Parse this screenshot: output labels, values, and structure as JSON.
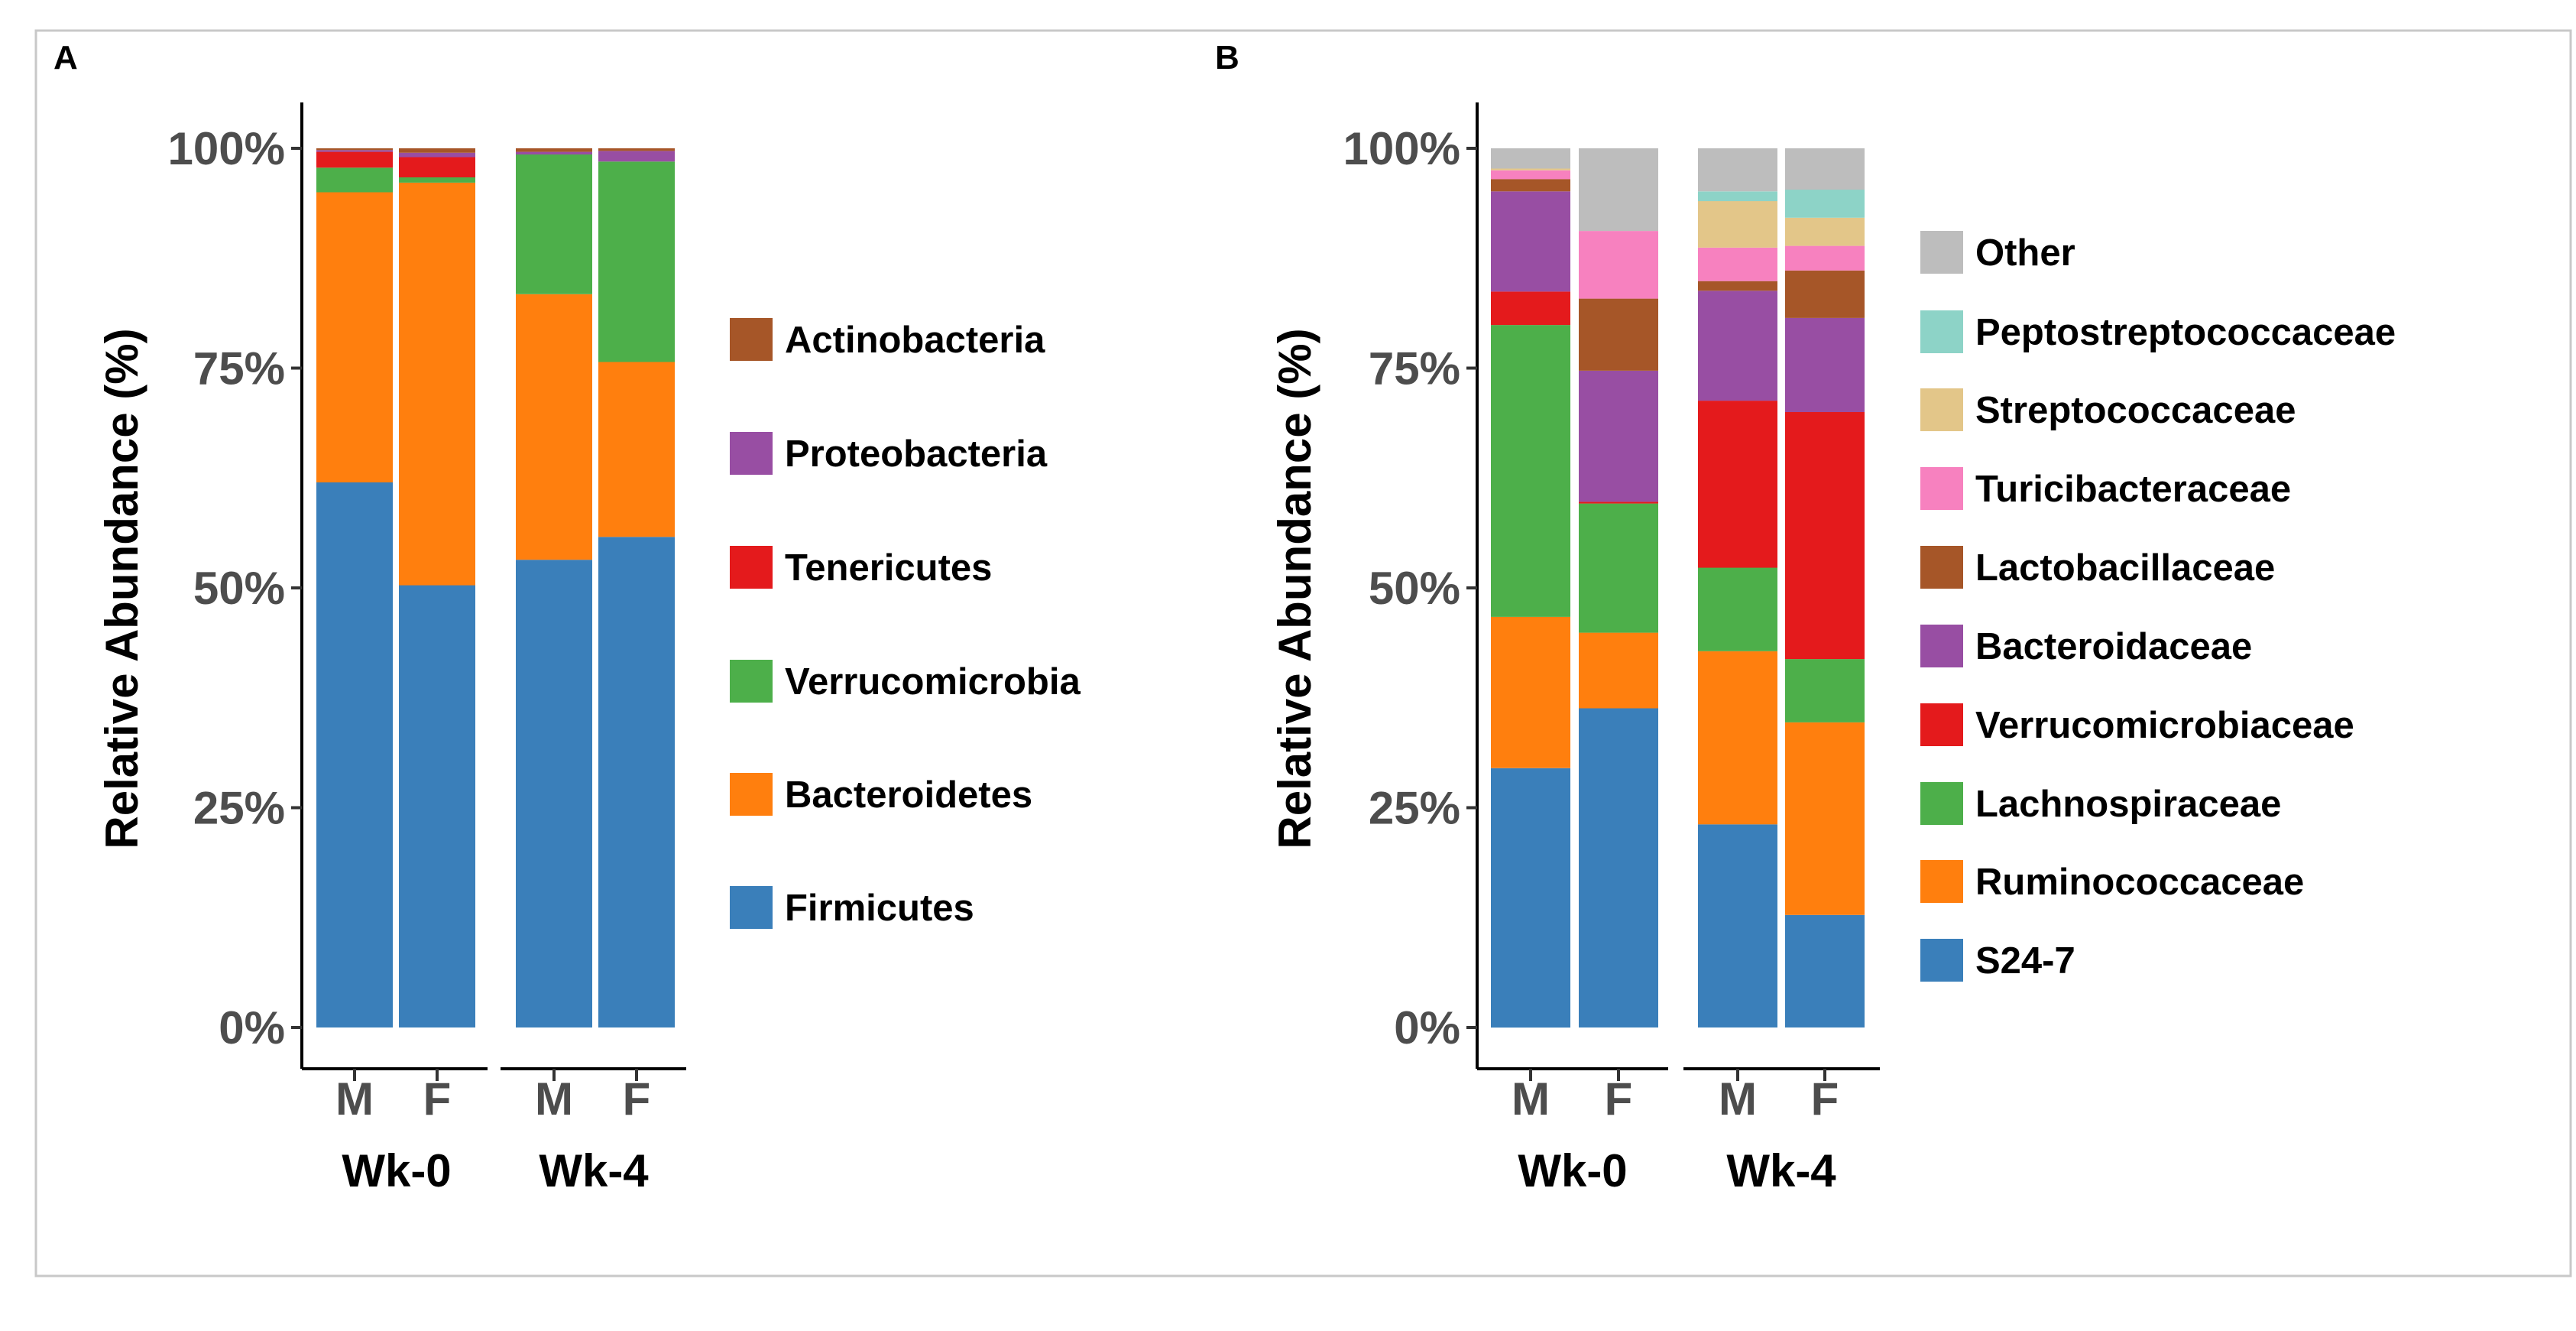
{
  "colors": {
    "blue": "#3a7fba",
    "orange": "#ff7f0e",
    "green": "#4daf4a",
    "red": "#e41a1c",
    "purple": "#984ea3",
    "brown": "#a65628",
    "pink": "#f781bf",
    "tan": "#e3c689",
    "teal": "#8dd3c7",
    "grey": "#bdbdbd"
  },
  "chart_data": [
    {
      "panel": "A",
      "type": "bar",
      "stacked": true,
      "ylabel": "Relative Abundance (%)",
      "yticks": [
        "0%",
        "25%",
        "50%",
        "75%",
        "100%"
      ],
      "ylim": [
        0,
        100
      ],
      "groups": [
        "Wk-0",
        "Wk-4"
      ],
      "categories": [
        "M",
        "F",
        "M",
        "F"
      ],
      "legend": [
        "Actinobacteria",
        "Proteobacteria",
        "Tenericutes",
        "Verrucomicrobia",
        "Bacteroidetes",
        "Firmicutes"
      ],
      "legend_colors": [
        "brown",
        "purple",
        "red",
        "green",
        "orange",
        "blue"
      ],
      "series": [
        {
          "name": "Firmicutes",
          "color": "blue",
          "values": [
            62.0,
            50.3,
            53.2,
            55.8
          ]
        },
        {
          "name": "Bacteroidetes",
          "color": "orange",
          "values": [
            33.0,
            45.8,
            30.2,
            19.9
          ]
        },
        {
          "name": "Verrucomicrobia",
          "color": "green",
          "values": [
            2.8,
            0.6,
            15.9,
            22.8
          ]
        },
        {
          "name": "Tenericutes",
          "color": "red",
          "values": [
            1.8,
            2.3,
            0.0,
            0.0
          ]
        },
        {
          "name": "Proteobacteria",
          "color": "purple",
          "values": [
            0.2,
            0.5,
            0.3,
            1.2
          ]
        },
        {
          "name": "Actinobacteria",
          "color": "brown",
          "values": [
            0.2,
            0.5,
            0.4,
            0.3
          ]
        }
      ]
    },
    {
      "panel": "B",
      "type": "bar",
      "stacked": true,
      "ylabel": "Relative Abundance (%)",
      "yticks": [
        "0%",
        "25%",
        "50%",
        "75%",
        "100%"
      ],
      "ylim": [
        0,
        100
      ],
      "groups": [
        "Wk-0",
        "Wk-4"
      ],
      "categories": [
        "M",
        "F",
        "M",
        "F"
      ],
      "legend": [
        "Other",
        "Peptostreptococcaceae",
        "Streptococcaceae",
        "Turicibacteraceae",
        "Lactobacillaceae",
        "Bacteroidaceae",
        "Verrucomicrobiaceae",
        "Lachnospiraceae",
        "Ruminococcaceae",
        "S24-7"
      ],
      "legend_colors": [
        "grey",
        "teal",
        "tan",
        "pink",
        "brown",
        "purple",
        "red",
        "green",
        "orange",
        "blue"
      ],
      "series": [
        {
          "name": "S24-7",
          "color": "blue",
          "values": [
            29.5,
            36.3,
            23.1,
            12.8
          ]
        },
        {
          "name": "Ruminococcaceae",
          "color": "orange",
          "values": [
            17.2,
            8.6,
            19.7,
            21.9
          ]
        },
        {
          "name": "Lachnospiraceae",
          "color": "green",
          "values": [
            33.2,
            14.7,
            9.5,
            7.2
          ]
        },
        {
          "name": "Verrucomicrobiaceae",
          "color": "red",
          "values": [
            3.8,
            0.2,
            19.0,
            28.1
          ]
        },
        {
          "name": "Bacteroidaceae",
          "color": "purple",
          "values": [
            11.4,
            14.9,
            12.5,
            10.7
          ]
        },
        {
          "name": "Lactobacillaceae",
          "color": "brown",
          "values": [
            1.4,
            8.2,
            1.1,
            5.4
          ]
        },
        {
          "name": "Turicibacteraceae",
          "color": "pink",
          "values": [
            1.0,
            7.7,
            3.8,
            2.8
          ]
        },
        {
          "name": "Streptococcaceae",
          "color": "tan",
          "values": [
            0.2,
            0.0,
            5.3,
            3.2
          ]
        },
        {
          "name": "Peptostreptococcaceae",
          "color": "teal",
          "values": [
            0.0,
            0.0,
            1.1,
            3.2
          ]
        },
        {
          "name": "Other",
          "color": "grey",
          "values": [
            2.3,
            9.4,
            4.9,
            4.7
          ]
        }
      ]
    }
  ]
}
